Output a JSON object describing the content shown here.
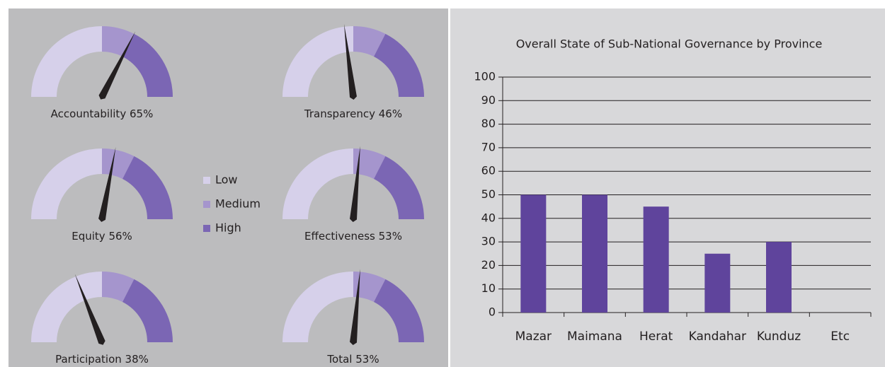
{
  "chart_data": [
    {
      "type": "gauge",
      "categories": [
        "Accountability",
        "Transparency",
        "Equity",
        "Effectiveness",
        "Participation",
        "Total"
      ],
      "values": [
        65,
        46,
        56,
        53,
        38,
        53
      ],
      "value_labels": [
        "65%",
        "46%",
        "56%",
        "53%",
        "38%",
        "53%"
      ],
      "xlim": [
        0,
        100
      ],
      "bands": {
        "names": [
          "Low",
          "Medium",
          "High"
        ],
        "colors": [
          "#d6d0ea",
          "#a595cd",
          "#7b66b4"
        ],
        "edges": [
          0,
          50,
          65,
          100
        ]
      },
      "needle_color": "#231f20"
    },
    {
      "type": "bar",
      "title": "Overall State of Sub-National Governance by Province",
      "categories": [
        "Mazar",
        "Maimana",
        "Herat",
        "Kandahar",
        "Kunduz",
        "Etc"
      ],
      "values": [
        50,
        50,
        45,
        25,
        30,
        null
      ],
      "color": "#5f449c",
      "ylim": [
        0,
        100
      ],
      "yticks": [
        0,
        10,
        20,
        30,
        40,
        50,
        60,
        70,
        80,
        90,
        100
      ],
      "grid": true
    }
  ]
}
